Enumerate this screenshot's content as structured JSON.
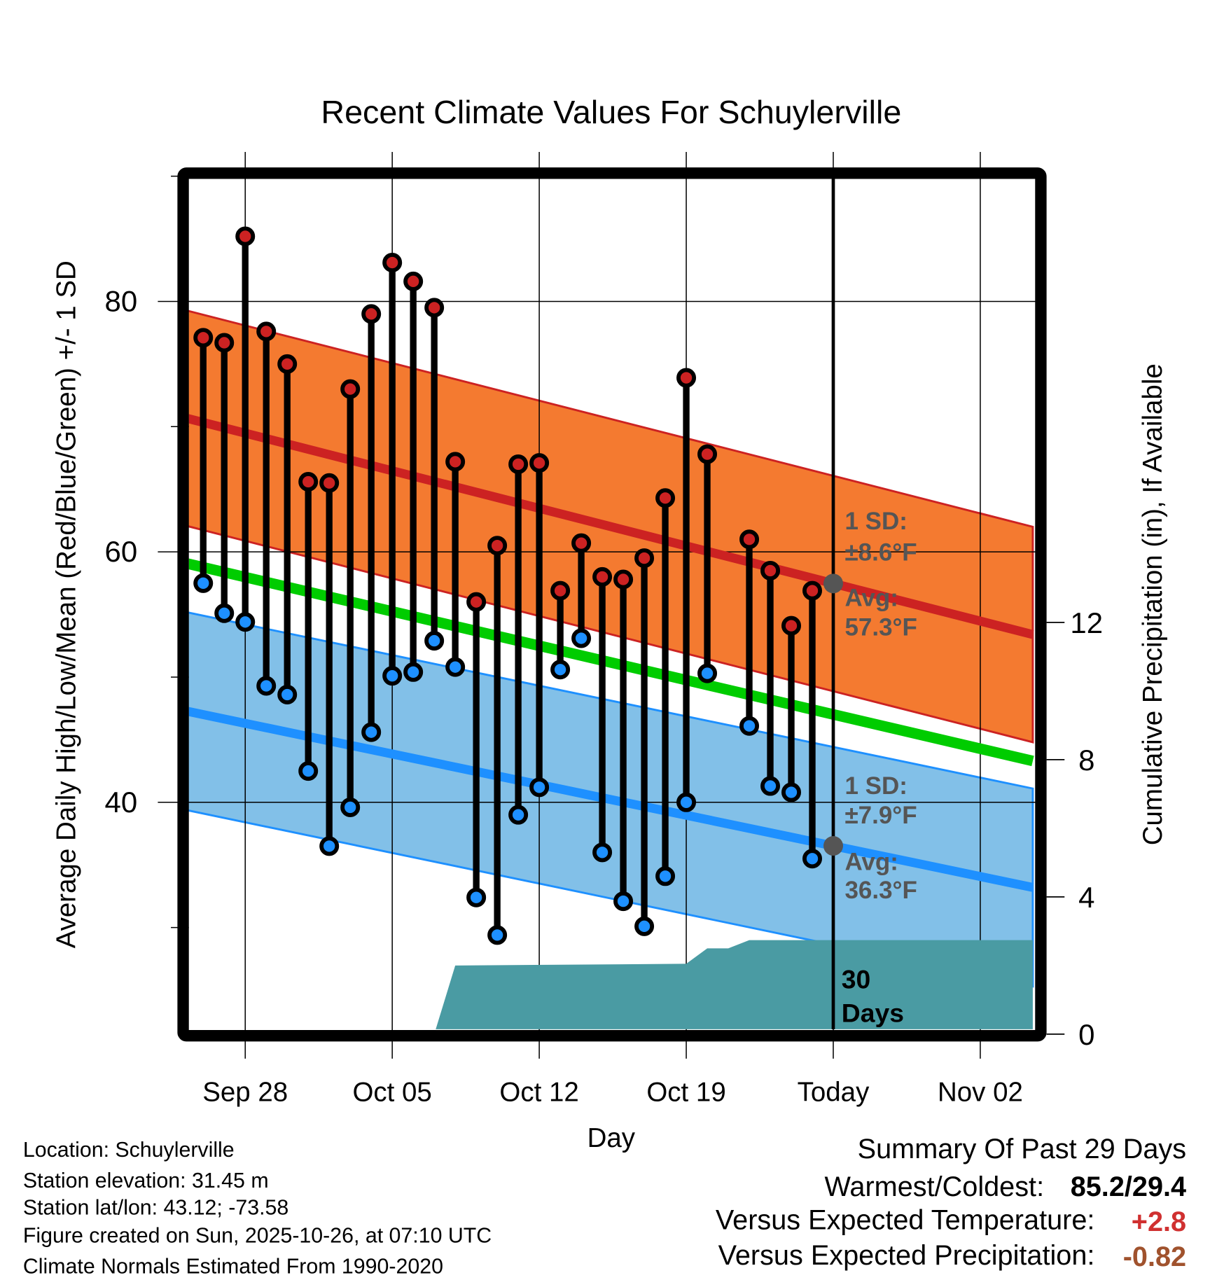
{
  "chart_data": {
    "type": "line",
    "title": "Recent Climate Values For Schuylerville",
    "xlabel": "Day",
    "ylabel": "Average Daily High/Low/Mean (Red/Blue/Green) +/- 1 SD",
    "y2label": "Cumulative Precipitation (in), If Available",
    "x_units": "days relative to Sep 28",
    "xlim": [
      -2.85,
      37.5
    ],
    "ylim": [
      21.5,
      90.2
    ],
    "y2lim": [
      0,
      25.1
    ],
    "x_ticks": [
      {
        "day": 0,
        "label": "Sep 28"
      },
      {
        "day": 7,
        "label": "Oct 05"
      },
      {
        "day": 14,
        "label": "Oct 12"
      },
      {
        "day": 21,
        "label": "Oct 19"
      },
      {
        "day": 28,
        "label": "Today"
      },
      {
        "day": 35,
        "label": "Nov 02"
      }
    ],
    "y_ticks": [
      {
        "value": 40,
        "label": "40"
      },
      {
        "value": 60,
        "label": "60"
      },
      {
        "value": 80,
        "label": "80"
      }
    ],
    "y_minor_ticks": [
      30,
      50,
      70,
      90
    ],
    "y2_ticks": [
      {
        "value": 0,
        "label": "0"
      },
      {
        "value": 4,
        "label": "4"
      },
      {
        "value": 8,
        "label": "8"
      },
      {
        "value": 12,
        "label": "12"
      }
    ],
    "grid": true,
    "today_day": 28,
    "observations": {
      "days": [
        -2,
        -1,
        0,
        1,
        2,
        3,
        4,
        5,
        6,
        7,
        8,
        9,
        10,
        11,
        12,
        13,
        14,
        15,
        16,
        17,
        18,
        19,
        20,
        21,
        22,
        24,
        25,
        26,
        27
      ],
      "highs": [
        77.1,
        76.7,
        85.2,
        77.6,
        75.0,
        65.6,
        65.5,
        73.0,
        79.0,
        83.1,
        81.6,
        79.5,
        67.2,
        56.0,
        60.5,
        67.0,
        67.1,
        56.9,
        60.7,
        58.0,
        57.8,
        59.5,
        64.3,
        73.9,
        67.8,
        61.0,
        58.5,
        54.1,
        56.9
      ],
      "lows": [
        57.5,
        55.1,
        54.4,
        49.3,
        48.6,
        42.5,
        36.5,
        39.6,
        45.6,
        50.1,
        50.4,
        52.9,
        50.8,
        32.4,
        29.4,
        39.0,
        41.2,
        50.6,
        53.1,
        36.0,
        32.1,
        30.1,
        34.1,
        40.0,
        50.3,
        46.1,
        41.3,
        40.8,
        35.5
      ]
    },
    "normals": {
      "days": [
        -2.85,
        37.5
      ],
      "high_mean": [
        70.7,
        53.4
      ],
      "high_sd": 8.6,
      "low_mean": [
        47.3,
        33.2
      ],
      "low_sd": 7.9,
      "mean": [
        59.1,
        43.3
      ]
    },
    "precip": {
      "days": [
        -2.85,
        9,
        10,
        21,
        22,
        23,
        24,
        37.5
      ],
      "values": [
        0,
        0,
        2.0,
        2.05,
        2.5,
        2.5,
        2.74,
        2.74
      ]
    },
    "annotations": {
      "high_sd": "1 SD:",
      "high_sd_val": "±8.6°F",
      "high_avg": "Avg:",
      "high_avg_val": "57.3°F",
      "low_sd": "1 SD:",
      "low_sd_val": "±7.9°F",
      "low_avg": "Avg:",
      "low_avg_val": "36.3°F",
      "days_num": "30",
      "days_word": "Days"
    },
    "colors": {
      "high_band": "#f47a30",
      "high_line": "#cc2222",
      "low_band": "#82c0e8",
      "low_line": "#1e90ff",
      "mean_line": "#00cc00",
      "precip": "#4a9ba3",
      "high_dot": "#cc2222",
      "low_dot": "#1e90ff",
      "annotation": "#555555"
    }
  },
  "footer": {
    "location": "Location: Schuylerville",
    "elevation": "Station elevation: 31.45 m",
    "latlon": "Station lat/lon: 43.12; -73.58",
    "created": "Figure created on Sun, 2025-10-26, at 07:10 UTC",
    "normals": "Climate Normals Estimated From 1990-2020"
  },
  "summary": {
    "title": "Summary Of Past 29 Days",
    "warmest_label": "Warmest/Coldest:",
    "warmest_value": "85.2/29.4",
    "temp_label": "Versus Expected Temperature:",
    "temp_value": "+2.8",
    "temp_color": "#d03030",
    "precip_label": "Versus Expected Precipitation:",
    "precip_value": "-0.82",
    "precip_color": "#a0522d"
  }
}
